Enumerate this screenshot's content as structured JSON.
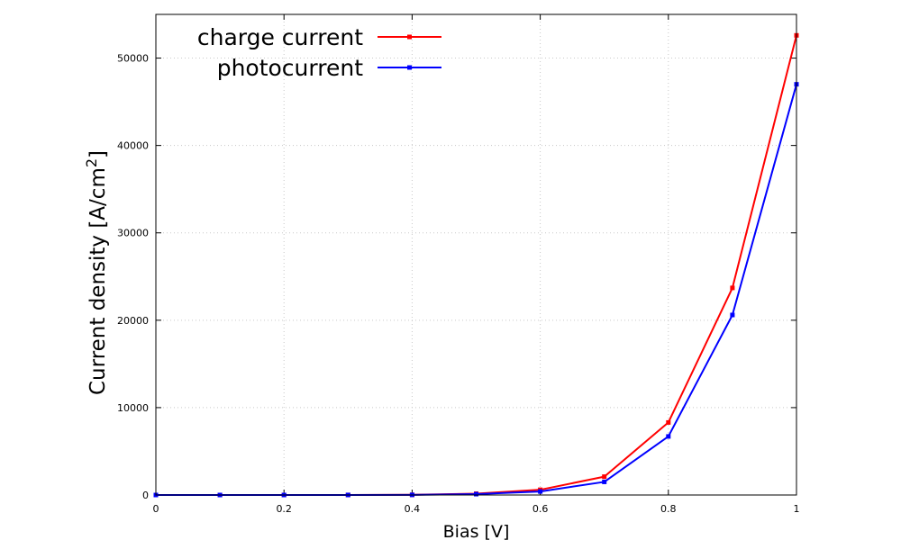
{
  "chart_data": {
    "type": "line",
    "xlabel": "Bias [V]",
    "ylabel": "Current density [A/cm",
    "ylabel_superscript": "2",
    "ylabel_suffix": "]",
    "xlim": [
      0,
      1
    ],
    "ylim": [
      0,
      55000
    ],
    "grid": true,
    "legend_position": "top-left",
    "x_ticks": [
      0,
      0.2,
      0.4,
      0.6,
      0.8,
      1
    ],
    "x_tick_labels": [
      "0",
      "0.2",
      "0.4",
      "0.6",
      "0.8",
      "1"
    ],
    "y_ticks": [
      0,
      10000,
      20000,
      30000,
      40000,
      50000
    ],
    "y_tick_labels": [
      "0",
      "10000",
      "20000",
      "30000",
      "40000",
      "50000"
    ],
    "x": [
      0,
      0.1,
      0.2,
      0.3,
      0.4,
      0.5,
      0.6,
      0.7,
      0.8,
      0.9,
      1.0
    ],
    "series": [
      {
        "name": "charge current",
        "color": "#ff0000",
        "values": [
          0,
          0,
          0,
          5,
          20,
          150,
          600,
          2100,
          8300,
          23700,
          52600
        ]
      },
      {
        "name": "photocurrent",
        "color": "#0000ff",
        "values": [
          0,
          0,
          0,
          5,
          15,
          100,
          400,
          1500,
          6700,
          20600,
          47000
        ]
      }
    ]
  }
}
